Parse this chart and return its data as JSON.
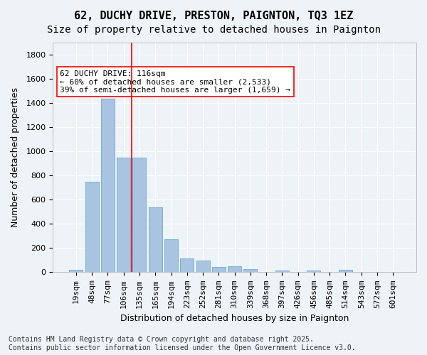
{
  "title": "62, DUCHY DRIVE, PRESTON, PAIGNTON, TQ3 1EZ",
  "subtitle": "Size of property relative to detached houses in Paignton",
  "xlabel": "Distribution of detached houses by size in Paignton",
  "ylabel": "Number of detached properties",
  "categories": [
    "19sqm",
    "48sqm",
    "77sqm",
    "106sqm",
    "135sqm",
    "165sqm",
    "194sqm",
    "223sqm",
    "252sqm",
    "281sqm",
    "310sqm",
    "339sqm",
    "368sqm",
    "397sqm",
    "426sqm",
    "456sqm",
    "485sqm",
    "514sqm",
    "543sqm",
    "572sqm",
    "601sqm"
  ],
  "values": [
    22,
    748,
    1435,
    950,
    950,
    537,
    270,
    113,
    95,
    42,
    47,
    28,
    5,
    14,
    5,
    14,
    5,
    22,
    5,
    5,
    5
  ],
  "bar_color": "#a8c4e0",
  "bar_edge_color": "#5a9fd4",
  "bg_color": "#eef3f8",
  "grid_color": "#ffffff",
  "vline_x_index": 3,
  "vline_color": "red",
  "annotation_text": "62 DUCHY DRIVE: 116sqm\n← 60% of detached houses are smaller (2,533)\n39% of semi-detached houses are larger (1,659) →",
  "annotation_box_color": "white",
  "annotation_box_edge": "red",
  "ylim": [
    0,
    1900
  ],
  "yticks": [
    0,
    200,
    400,
    600,
    800,
    1000,
    1200,
    1400,
    1600,
    1800
  ],
  "footer": "Contains HM Land Registry data © Crown copyright and database right 2025.\nContains public sector information licensed under the Open Government Licence v3.0.",
  "title_fontsize": 11,
  "subtitle_fontsize": 10,
  "axis_label_fontsize": 9,
  "tick_fontsize": 8,
  "annotation_fontsize": 8,
  "footer_fontsize": 7
}
